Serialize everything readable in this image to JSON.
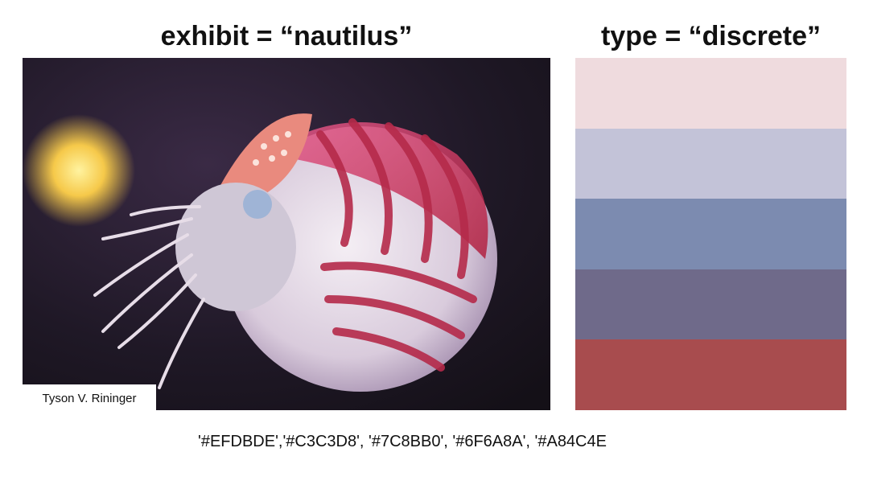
{
  "titles": {
    "left": "exhibit =  “nautilus”",
    "right": "type = “discrete”"
  },
  "photo": {
    "subject": "nautilus",
    "credit": "Tyson V. Rininger"
  },
  "palette": {
    "colors": [
      "#EFDBDE",
      "#C3C3D8",
      "#7C8BB0",
      "#6F6A8A",
      "#A84C4E"
    ],
    "hex_list_text": "'#EFDBDE','#C3C3D8', '#7C8BB0', '#6F6A8A', '#A84C4E"
  }
}
